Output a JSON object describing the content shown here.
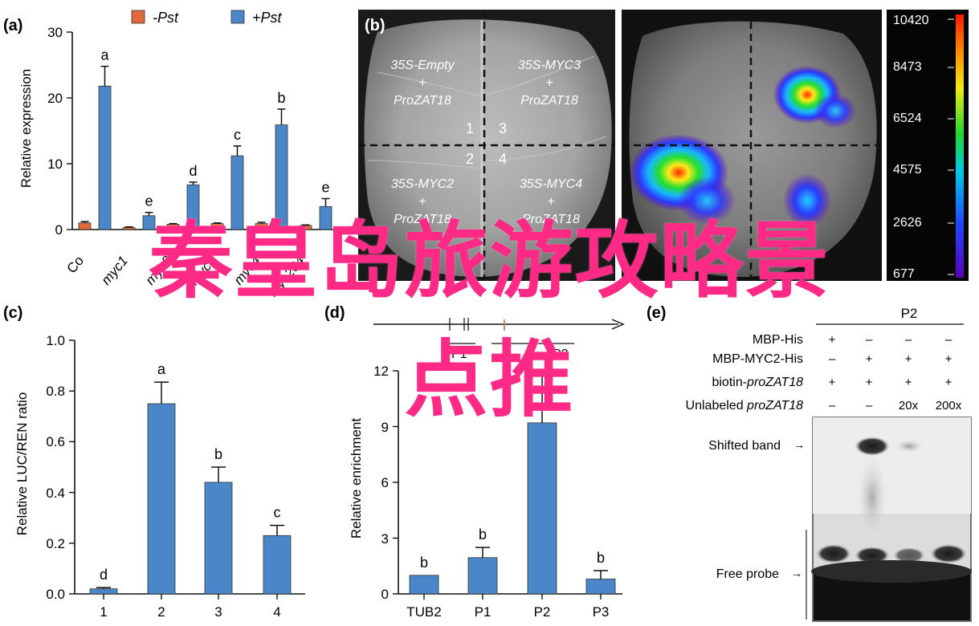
{
  "panel_a": {
    "label": "(a)",
    "legend": {
      "minus": "-Pst",
      "plus": "+Pst"
    },
    "colors": {
      "minus": "#e06a3b",
      "plus": "#4a86c8"
    },
    "ylabel": "Relative expression",
    "yticks": [
      "0",
      "10",
      "20",
      "30"
    ],
    "xtick_labels": [
      "Co",
      "myc1",
      "myc2",
      "myc3",
      "myc4",
      "myc234"
    ]
  },
  "panel_b": {
    "label": "(b)",
    "constructs": [
      {
        "l1": "35S-Empty",
        "l2": "+",
        "l3": "ProZAT18"
      },
      {
        "l1": "35S-MYC3",
        "l2": "+",
        "l3": "ProZAT18"
      },
      {
        "l1": "35S-MYC2",
        "l2": "+",
        "l3": "ProZAT18"
      },
      {
        "l1": "35S-MYC4",
        "l2": "+",
        "l3": "ProZAT18"
      }
    ],
    "quadrant_numbers": [
      "1",
      "3",
      "2",
      "4"
    ],
    "scale_values": [
      "10420",
      "8473",
      "6524",
      "4575",
      "2626",
      "677"
    ]
  },
  "panel_c": {
    "label": "(c)",
    "ylabel": "Relative LUC/REN ratio",
    "yticks": [
      "0.0",
      "0.2",
      "0.4",
      "0.6",
      "0.8",
      "1.0"
    ]
  },
  "panel_d": {
    "label": "(d)",
    "ylabel": "Relative enrichment",
    "yticks": [
      "0",
      "3",
      "6",
      "9",
      "12"
    ],
    "gene_labels": [
      "P1",
      "P2"
    ]
  },
  "panel_e": {
    "label": "(e)",
    "probe_label": "P2",
    "rows": [
      {
        "label": "MBP-His",
        "cells": [
          "+",
          "–",
          "–",
          "–"
        ]
      },
      {
        "label": "MBP-MYC2-His",
        "cells": [
          "–",
          "+",
          "+",
          "+"
        ]
      },
      {
        "label": "biotin-",
        "label_italic": "proZAT18",
        "cells": [
          "+",
          "+",
          "+",
          "+"
        ]
      },
      {
        "label": "Unlabeled ",
        "label_italic": "proZAT18",
        "cells": [
          "–",
          "–",
          "20x",
          "200x"
        ]
      }
    ],
    "shifted_band": "Shifted band",
    "free_probe": "Free probe",
    "arrow": "→"
  },
  "overlay": {
    "line1": "秦皇岛旅游攻略景",
    "line2": "点推",
    "color": "#ff2a86"
  },
  "chart_data": [
    {
      "type": "bar",
      "panel": "a",
      "title": "",
      "categories": [
        "Co",
        "myc1",
        "myc2",
        "myc3",
        "myc4",
        "myc234"
      ],
      "series": [
        {
          "name": "-Pst",
          "values": [
            1.0,
            0.3,
            0.8,
            0.9,
            0.9,
            0.6
          ],
          "errors": [
            0.2,
            0.1,
            0.1,
            0.1,
            0.2,
            0.1
          ],
          "letters": [
            "",
            "",
            "",
            "",
            "",
            ""
          ]
        },
        {
          "name": "+Pst",
          "values": [
            21.8,
            2.1,
            6.8,
            11.2,
            15.9,
            3.5
          ],
          "errors": [
            3.0,
            0.5,
            0.4,
            1.5,
            2.4,
            1.2
          ],
          "letters": [
            "a",
            "e",
            "d",
            "c",
            "b",
            "e"
          ]
        }
      ],
      "xlabel": "",
      "ylabel": "Relative expression",
      "ylim": [
        0,
        30
      ],
      "legend": "top"
    },
    {
      "type": "bar",
      "panel": "c",
      "title": "",
      "categories": [
        "1",
        "2",
        "3",
        "4"
      ],
      "values": [
        0.02,
        0.75,
        0.44,
        0.23
      ],
      "errors": [
        0.005,
        0.085,
        0.06,
        0.04
      ],
      "letters": [
        "d",
        "a",
        "b",
        "c"
      ],
      "xlabel": "",
      "ylabel": "Relative LUC/REN ratio",
      "ylim": [
        0,
        1.0
      ]
    },
    {
      "type": "bar",
      "panel": "d",
      "title": "",
      "categories": [
        "TUB2",
        "P1",
        "P2",
        "P3"
      ],
      "values": [
        1.0,
        1.95,
        9.2,
        0.8
      ],
      "errors": [
        0,
        0.55,
        2.8,
        0.45
      ],
      "letters": [
        "b",
        "b",
        "",
        "b"
      ],
      "xlabel": "",
      "ylabel": "Relative enrichment",
      "ylim": [
        0,
        12
      ]
    }
  ]
}
